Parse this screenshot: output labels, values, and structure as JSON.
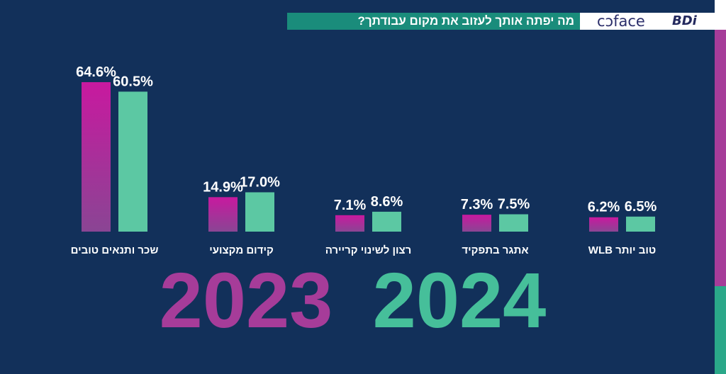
{
  "header": {
    "title": "מה יפתה אותך לעזוב את מקום עבודתך?",
    "logo": "coface BDi"
  },
  "colors": {
    "background": "#12305a",
    "series_2023_top": "#c8199f",
    "series_2023_bottom": "#8a4594",
    "series_2024": "#5cc8a3",
    "year_2023_text": "#a63c99",
    "year_2024_text": "#46bf9a",
    "title_bar": "#1a8c7b"
  },
  "chart_data": {
    "type": "bar",
    "categories": [
      "שכר ותנאים טובים",
      "קידום מקצועי",
      "רצון לשינוי קריירה",
      "אתגר בתפקיד",
      "טוב יותר WLB"
    ],
    "series": [
      {
        "name": "2023",
        "values": [
          64.6,
          14.9,
          7.1,
          7.3,
          6.2
        ],
        "labels": [
          "64.6%",
          "14.9%",
          "7.1%",
          "7.3%",
          "6.2%"
        ]
      },
      {
        "name": "2024",
        "values": [
          60.5,
          17.0,
          8.6,
          7.5,
          6.5
        ],
        "labels": [
          "60.5%",
          "17.0%",
          "8.6%",
          "7.5%",
          "6.5%"
        ]
      }
    ],
    "legend": [
      "2023",
      "2024"
    ],
    "ylim": [
      0,
      70
    ],
    "grid": false
  }
}
